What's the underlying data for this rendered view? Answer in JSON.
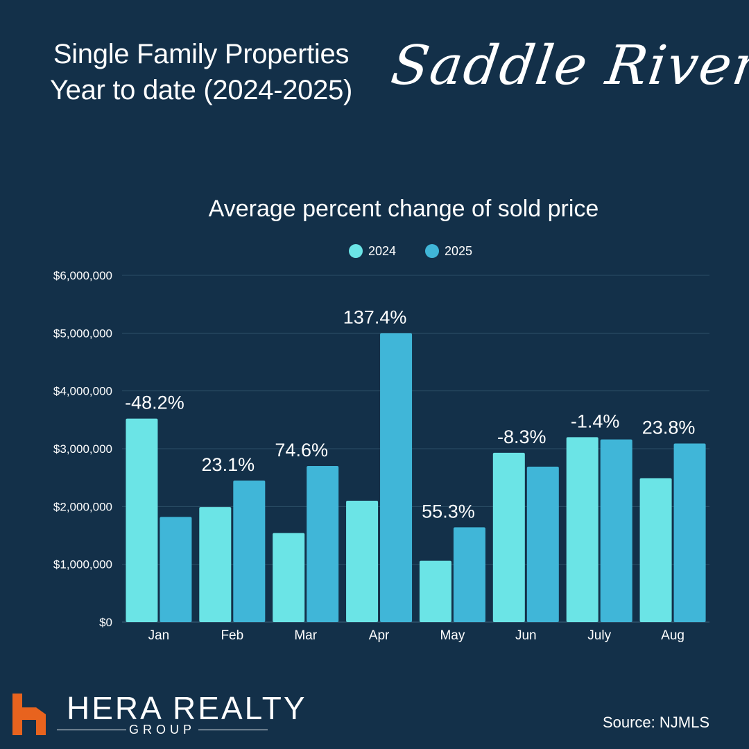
{
  "header": {
    "title_line1": "Single Family Properties",
    "title_line2": "Year to date  (2024-2025)",
    "script_title": "Saddle River"
  },
  "colors": {
    "background": "#133049",
    "series_2024": "#6BE4E6",
    "series_2025": "#40B6D8",
    "logo_accent": "#E8631E"
  },
  "chart_data": {
    "type": "bar",
    "title": "Average percent change of sold price",
    "categories": [
      "Jan",
      "Feb",
      "Mar",
      "Apr",
      "May",
      "Jun",
      "July",
      "Aug"
    ],
    "series": [
      {
        "name": "2024",
        "values": [
          3520000,
          1990000,
          1540000,
          2100000,
          1060000,
          2930000,
          3200000,
          2490000
        ]
      },
      {
        "name": "2025",
        "values": [
          1820000,
          2450000,
          2700000,
          5000000,
          1640000,
          2690000,
          3160000,
          3090000
        ]
      }
    ],
    "annotations": [
      "-48.2%",
      "23.1%",
      "74.6%",
      "137.4%",
      "55.3%",
      "-8.3%",
      "-1.4%",
      "23.8%"
    ],
    "ylim": [
      0,
      6000000
    ],
    "yticks": [
      0,
      1000000,
      2000000,
      3000000,
      4000000,
      5000000,
      6000000
    ],
    "ytick_labels": [
      "$0",
      "$1,000,000",
      "$2,000,000",
      "$3,000,000",
      "$4,000,000",
      "$5,000,000",
      "$6,000,000"
    ],
    "xlabel": "",
    "ylabel": "",
    "grid": true,
    "legend": "top-center"
  },
  "footer": {
    "logo_name": "HERA REALTY",
    "logo_sub": "GROUP",
    "source": "Source: NJMLS"
  }
}
